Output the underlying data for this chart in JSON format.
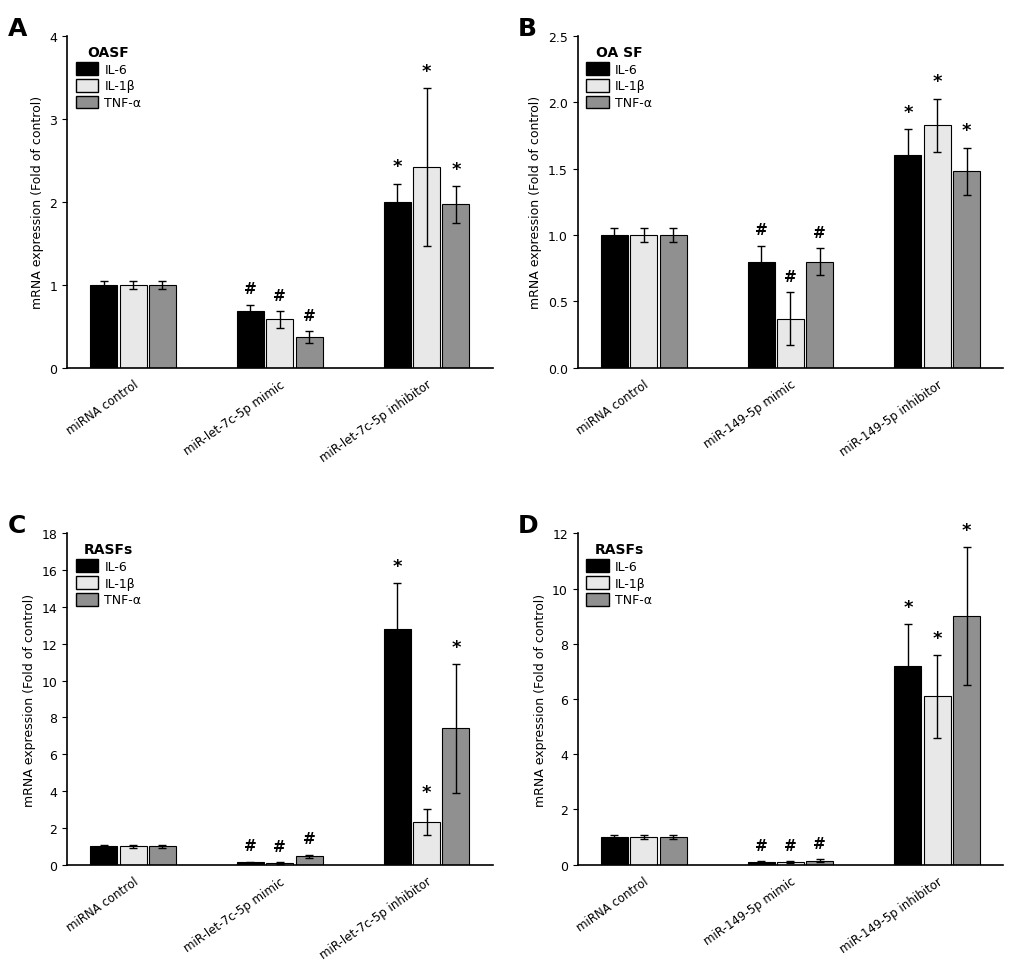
{
  "panels": [
    {
      "label": "A",
      "title": "OASF",
      "x_labels": [
        "miRNA\ncontrol",
        "miR-let-7c-5p\nmimic",
        "miR-let-7c-5p\ninhibitor"
      ],
      "ylabel": "mRNA expression (Fold of control)",
      "ylim": [
        0,
        4
      ],
      "yticks": [
        0,
        1,
        2,
        3,
        4
      ],
      "bars": {
        "IL-6": [
          1.0,
          0.68,
          2.0
        ],
        "IL-1b": [
          1.0,
          0.58,
          2.42
        ],
        "TNF-a": [
          1.0,
          0.37,
          1.97
        ]
      },
      "errors": {
        "IL-6": [
          0.05,
          0.08,
          0.22
        ],
        "IL-1b": [
          0.05,
          0.1,
          0.95
        ],
        "TNF-a": [
          0.05,
          0.07,
          0.22
        ]
      },
      "sig_hash": {
        "IL-6": [
          false,
          true,
          false
        ],
        "IL-1b": [
          false,
          true,
          false
        ],
        "TNF-a": [
          false,
          true,
          false
        ]
      },
      "sig_star": {
        "IL-6": [
          false,
          false,
          true
        ],
        "IL-1b": [
          false,
          false,
          true
        ],
        "TNF-a": [
          false,
          false,
          true
        ]
      }
    },
    {
      "label": "B",
      "title": "OA SF",
      "x_labels": [
        "miRNA\ncontrol",
        "miR-149-5p\nmimic",
        "miR-149-5p\ninhibitor"
      ],
      "ylabel": "mRNA expression (Fold of control)",
      "ylim": [
        0,
        2.5
      ],
      "yticks": [
        0.0,
        0.5,
        1.0,
        1.5,
        2.0,
        2.5
      ],
      "bars": {
        "IL-6": [
          1.0,
          0.8,
          1.6
        ],
        "IL-1b": [
          1.0,
          0.37,
          1.83
        ],
        "TNF-a": [
          1.0,
          0.8,
          1.48
        ]
      },
      "errors": {
        "IL-6": [
          0.05,
          0.12,
          0.2
        ],
        "IL-1b": [
          0.05,
          0.2,
          0.2
        ],
        "TNF-a": [
          0.05,
          0.1,
          0.18
        ]
      },
      "sig_hash": {
        "IL-6": [
          false,
          true,
          false
        ],
        "IL-1b": [
          false,
          true,
          false
        ],
        "TNF-a": [
          false,
          true,
          false
        ]
      },
      "sig_star": {
        "IL-6": [
          false,
          false,
          true
        ],
        "IL-1b": [
          false,
          false,
          true
        ],
        "TNF-a": [
          false,
          false,
          true
        ]
      }
    },
    {
      "label": "C",
      "title": "RASFs",
      "x_labels": [
        "miRNA\ncontrol",
        "miR-let-7c-5p\nmimic",
        "miR-let-7c-5p\ninhibitor"
      ],
      "ylabel": "mRNA expression (Fold of control)",
      "ylim": [
        0,
        18
      ],
      "yticks": [
        0,
        2,
        4,
        6,
        8,
        10,
        12,
        14,
        16,
        18
      ],
      "bars": {
        "IL-6": [
          1.0,
          0.12,
          12.8
        ],
        "IL-1b": [
          1.0,
          0.1,
          2.3
        ],
        "TNF-a": [
          1.0,
          0.45,
          7.4
        ]
      },
      "errors": {
        "IL-6": [
          0.08,
          0.04,
          2.5
        ],
        "IL-1b": [
          0.08,
          0.04,
          0.7
        ],
        "TNF-a": [
          0.08,
          0.1,
          3.5
        ]
      },
      "sig_hash": {
        "IL-6": [
          false,
          true,
          false
        ],
        "IL-1b": [
          false,
          true,
          false
        ],
        "TNF-a": [
          false,
          true,
          false
        ]
      },
      "sig_star": {
        "IL-6": [
          false,
          false,
          true
        ],
        "IL-1b": [
          false,
          false,
          true
        ],
        "TNF-a": [
          false,
          false,
          true
        ]
      }
    },
    {
      "label": "D",
      "title": "RASFs",
      "x_labels": [
        "miRNA\ncontrol",
        "miR-149-5p\nmimic",
        "miR-149-5p\ninhibitor"
      ],
      "ylabel": "mRNA expression (Fold of control)",
      "ylim": [
        0,
        12
      ],
      "yticks": [
        0,
        2,
        4,
        6,
        8,
        10,
        12
      ],
      "bars": {
        "IL-6": [
          1.0,
          0.1,
          7.2
        ],
        "IL-1b": [
          1.0,
          0.1,
          6.1
        ],
        "TNF-a": [
          1.0,
          0.15,
          9.0
        ]
      },
      "errors": {
        "IL-6": [
          0.08,
          0.04,
          1.5
        ],
        "IL-1b": [
          0.08,
          0.04,
          1.5
        ],
        "TNF-a": [
          0.08,
          0.05,
          2.5
        ]
      },
      "sig_hash": {
        "IL-6": [
          false,
          true,
          false
        ],
        "IL-1b": [
          false,
          true,
          false
        ],
        "TNF-a": [
          false,
          true,
          false
        ]
      },
      "sig_star": {
        "IL-6": [
          false,
          false,
          true
        ],
        "IL-1b": [
          false,
          false,
          true
        ],
        "TNF-a": [
          false,
          false,
          true
        ]
      }
    }
  ],
  "bar_colors": {
    "IL-6": "#000000",
    "IL-1b": "#e8e8e8",
    "TNF-a": "#909090"
  },
  "bar_width": 0.2,
  "group_centers": [
    0.3,
    1.3,
    2.3
  ]
}
